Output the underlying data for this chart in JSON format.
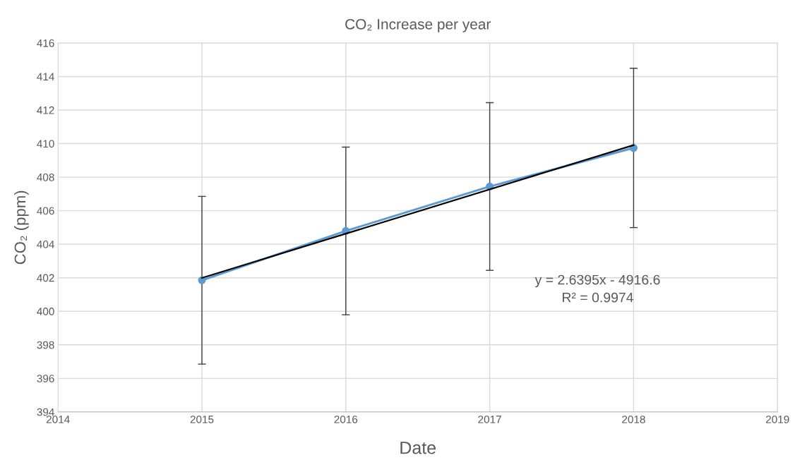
{
  "chart_data": {
    "type": "line",
    "title": "CO₂ Increase per year",
    "xlabel": "Date",
    "ylabel": "CO₂ (ppm)",
    "series": [
      {
        "color": "#5b9bd5",
        "marker": "circle",
        "x": [
          2015,
          2016,
          2017,
          2018
        ],
        "values": [
          401.85,
          404.79,
          407.44,
          409.74
        ],
        "errors": [
          5,
          5,
          5,
          4.75
        ]
      },
      {
        "color": "#000000",
        "marker": "none",
        "x": [
          2015,
          2018
        ],
        "values": [
          401.99,
          409.91
        ]
      }
    ],
    "xlim": [
      2014,
      2019
    ],
    "xticks": [
      2014,
      2015,
      2016,
      2017,
      2018,
      2019
    ],
    "ylim": [
      394,
      416
    ],
    "yticks": [
      394,
      396,
      398,
      400,
      402,
      404,
      406,
      408,
      410,
      412,
      414,
      416
    ],
    "grid": true,
    "annotations": [
      "y = 2.6395x - 4916.6",
      "R² = 0.9974"
    ]
  }
}
